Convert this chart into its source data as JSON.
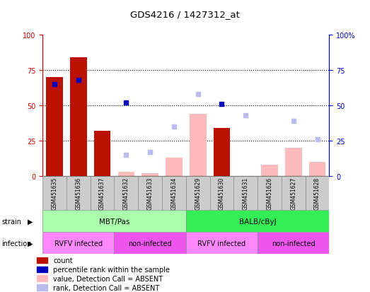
{
  "title": "GDS4216 / 1427312_at",
  "samples": [
    "GSM451635",
    "GSM451636",
    "GSM451637",
    "GSM451632",
    "GSM451633",
    "GSM451634",
    "GSM451629",
    "GSM451630",
    "GSM451631",
    "GSM451626",
    "GSM451627",
    "GSM451628"
  ],
  "count_values": [
    70,
    84,
    32,
    null,
    null,
    null,
    null,
    34,
    null,
    null,
    null,
    null
  ],
  "percentile_values": [
    65,
    68,
    null,
    52,
    null,
    null,
    null,
    51,
    null,
    null,
    null,
    null
  ],
  "absent_value_bars": [
    null,
    null,
    null,
    3,
    2,
    13,
    44,
    null,
    null,
    8,
    20,
    10
  ],
  "absent_rank_dots": [
    null,
    null,
    null,
    15,
    17,
    35,
    58,
    null,
    43,
    null,
    39,
    26
  ],
  "ylim": [
    0,
    100
  ],
  "yticks": [
    0,
    25,
    50,
    75,
    100
  ],
  "strain_groups": [
    {
      "label": "MBT/Pas",
      "start": 0,
      "end": 6,
      "color": "#AAFFAA"
    },
    {
      "label": "BALB/cByJ",
      "start": 6,
      "end": 12,
      "color": "#33EE55"
    }
  ],
  "infection_groups": [
    {
      "label": "RVFV infected",
      "start": 0,
      "end": 3,
      "color": "#FF88FF"
    },
    {
      "label": "non-infected",
      "start": 3,
      "end": 6,
      "color": "#EE55EE"
    },
    {
      "label": "RVFV infected",
      "start": 6,
      "end": 9,
      "color": "#FF88FF"
    },
    {
      "label": "non-infected",
      "start": 9,
      "end": 12,
      "color": "#EE55EE"
    }
  ],
  "count_color": "#BB1100",
  "percentile_color": "#0000BB",
  "absent_value_color": "#FFBBBB",
  "absent_rank_color": "#BBBBEE",
  "left_axis_color": "#CC0000",
  "right_axis_color": "#0000CC"
}
